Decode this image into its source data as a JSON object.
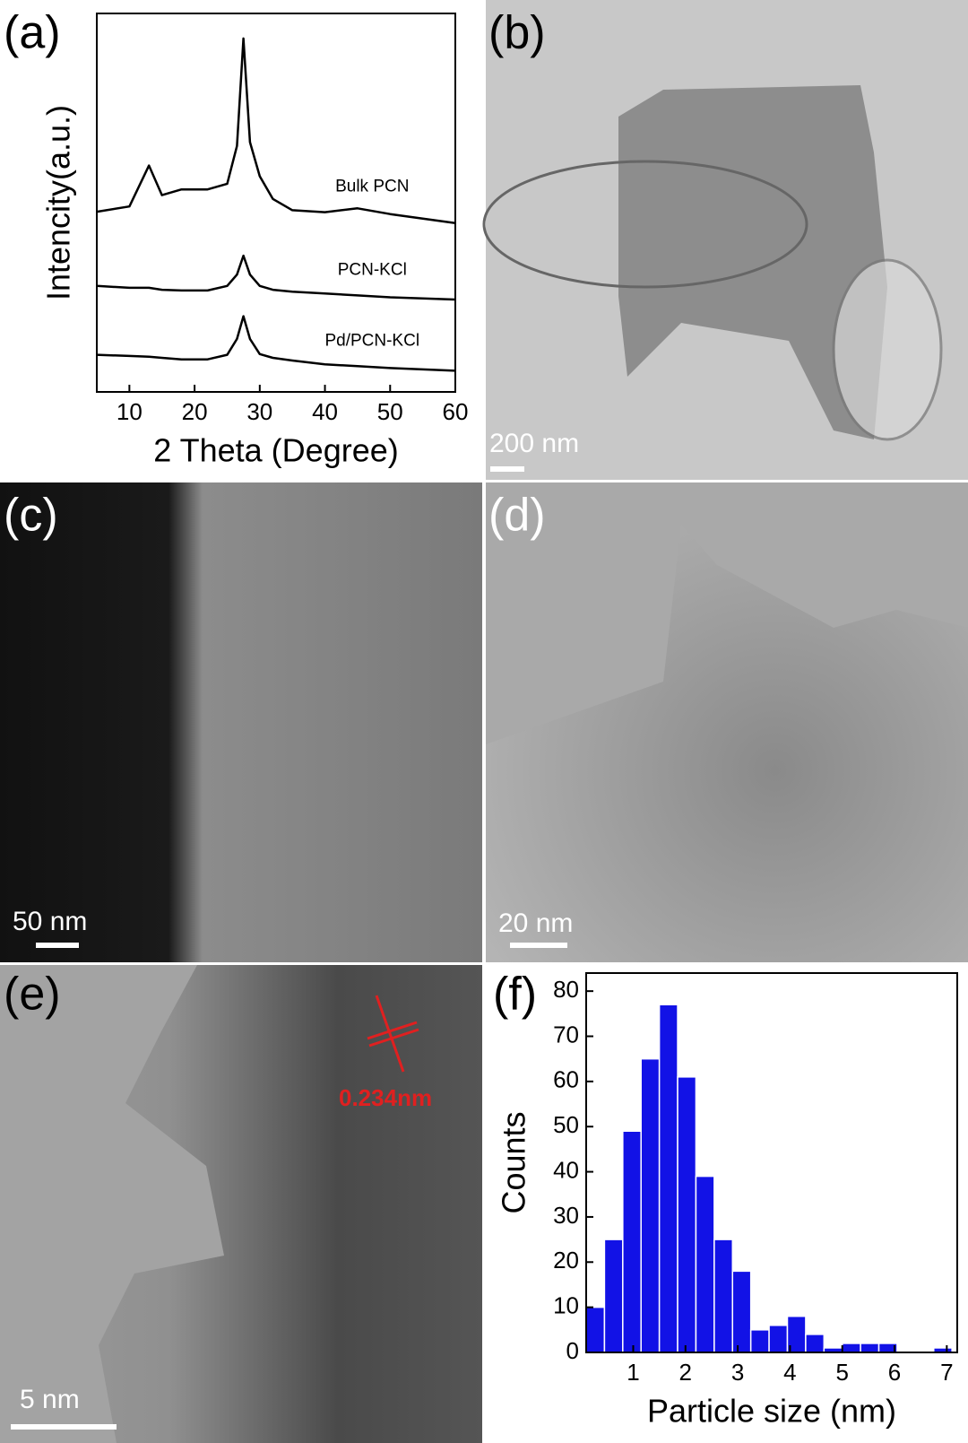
{
  "panel_labels": [
    "(a)",
    "(b)",
    "(c)",
    "(d)",
    "(e)",
    "(f)"
  ],
  "scale_bars": {
    "b": "200 nm",
    "c": "50 nm",
    "d": "20 nm",
    "e": "5 nm"
  },
  "lattice_annotation": "0.234nm",
  "chart_data": [
    {
      "type": "line",
      "x_label": "2 Theta (Degree)",
      "y_label": "Intencity(a.u.)",
      "x": [
        5,
        10,
        13,
        15,
        18,
        22,
        25,
        26.5,
        27.5,
        28.5,
        30,
        32,
        35,
        40,
        45,
        50,
        60
      ],
      "series": [
        {
          "name": "Bulk PCN",
          "color": "#000000",
          "values": [
            47.6,
            49,
            59.8,
            52,
            53.5,
            53.5,
            55,
            65,
            93.4,
            66,
            57,
            51,
            48,
            47.5,
            48.5,
            47,
            44.6
          ]
        },
        {
          "name": "PCN-KCl",
          "color": "#000000",
          "values": [
            28,
            27.5,
            27.5,
            27,
            26.8,
            26.8,
            28,
            31,
            36,
            31,
            28,
            27,
            26.5,
            26,
            25.5,
            25,
            24.4
          ]
        },
        {
          "name": "Pd/PCN-KCl",
          "color": "#000000",
          "values": [
            9.8,
            9.5,
            9.3,
            9,
            8.6,
            8.6,
            9.8,
            14,
            20,
            14,
            10,
            9,
            8.3,
            7.3,
            6.8,
            6.3,
            5.6
          ]
        }
      ],
      "xlim": [
        5,
        60
      ],
      "xticks": [
        10,
        20,
        30,
        40,
        50,
        60
      ],
      "ylim": [
        0,
        100
      ]
    },
    {
      "type": "histogram",
      "x_label": "Particle size (nm)",
      "y_label": "Counts",
      "color": "#1212e6",
      "bins": [
        0.1,
        0.45,
        0.8,
        1.15,
        1.5,
        1.85,
        2.2,
        2.55,
        2.9,
        3.25,
        3.6,
        3.95,
        4.3,
        4.65,
        5.0,
        5.35,
        5.7,
        6.05,
        6.4,
        6.75,
        7.1
      ],
      "values": [
        10,
        25,
        49,
        65,
        77,
        61,
        39,
        25,
        18,
        5,
        6,
        8,
        4,
        1,
        2,
        2,
        2,
        0,
        0,
        1
      ],
      "xlim": [
        0.1,
        7.2
      ],
      "xticks": [
        1,
        2,
        3,
        4,
        5,
        6,
        7
      ],
      "ylim": [
        0,
        84
      ],
      "yticks": [
        0,
        10,
        20,
        30,
        40,
        50,
        60,
        70,
        80
      ]
    }
  ]
}
